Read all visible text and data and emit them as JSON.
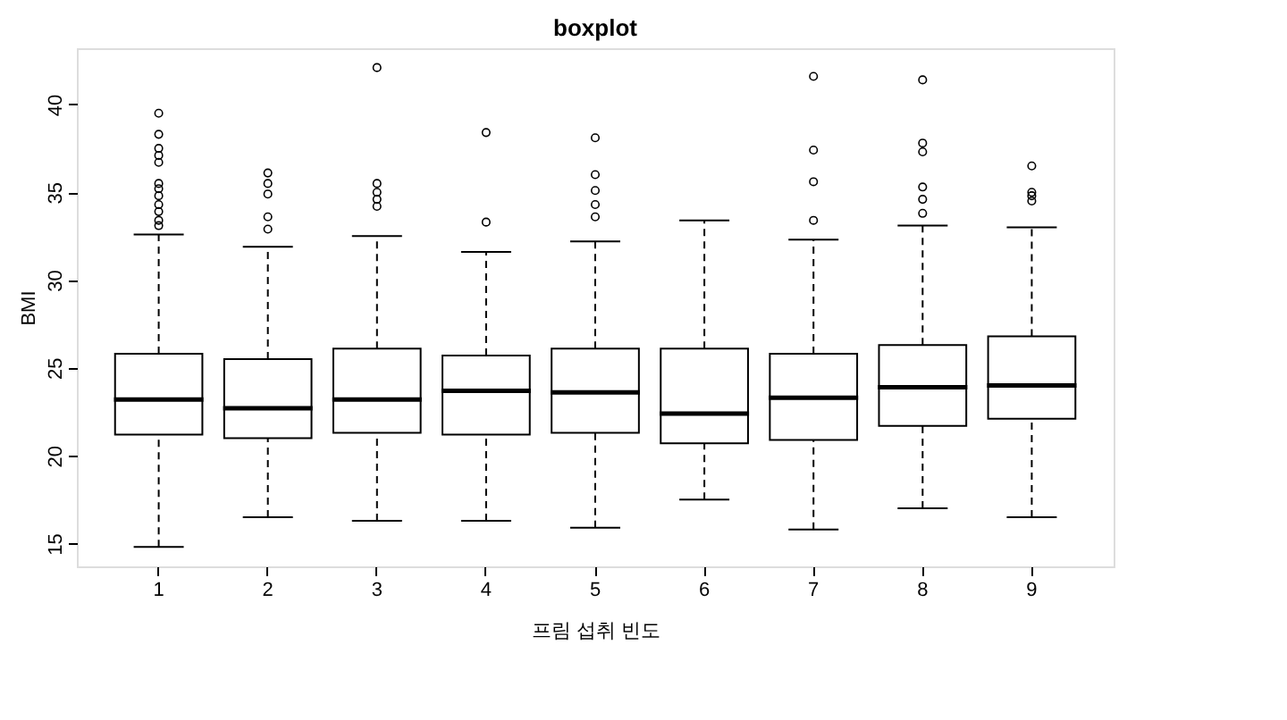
{
  "chart_data": {
    "type": "box",
    "title": "boxplot",
    "xlabel": "프림 섭취 빈도",
    "ylabel": "BMI",
    "categories": [
      "1",
      "2",
      "3",
      "4",
      "5",
      "6",
      "7",
      "8",
      "9"
    ],
    "boxes": [
      {
        "low": 14.8,
        "q1": 21.2,
        "median": 23.2,
        "q3": 25.8,
        "high": 32.6,
        "outliers": [
          39.5,
          38.3,
          37.5,
          37.1,
          36.7,
          35.5,
          35.2,
          34.8,
          34.3,
          33.9,
          33.4,
          33.1
        ]
      },
      {
        "low": 16.5,
        "q1": 21.0,
        "median": 22.7,
        "q3": 25.5,
        "high": 31.9,
        "outliers": [
          36.1,
          35.5,
          34.9,
          33.6,
          32.9
        ]
      },
      {
        "low": 16.3,
        "q1": 21.3,
        "median": 23.2,
        "q3": 26.1,
        "high": 32.5,
        "outliers": [
          42.1,
          35.5,
          35.0,
          34.6,
          34.2
        ]
      },
      {
        "low": 16.3,
        "q1": 21.2,
        "median": 23.7,
        "q3": 25.7,
        "high": 31.6,
        "outliers": [
          38.4,
          33.3
        ]
      },
      {
        "low": 15.9,
        "q1": 21.3,
        "median": 23.6,
        "q3": 26.1,
        "high": 32.2,
        "outliers": [
          38.1,
          36.0,
          35.1,
          34.3,
          33.6
        ]
      },
      {
        "low": 17.5,
        "q1": 20.7,
        "median": 22.4,
        "q3": 26.1,
        "high": 33.4
      },
      {
        "low": 15.8,
        "q1": 20.9,
        "median": 23.3,
        "q3": 25.8,
        "high": 32.3,
        "outliers": [
          41.6,
          37.4,
          35.6,
          33.4
        ]
      },
      {
        "low": 17.0,
        "q1": 21.7,
        "median": 23.9,
        "q3": 26.3,
        "high": 33.1,
        "outliers": [
          41.4,
          37.8,
          37.3,
          35.3,
          34.6,
          33.8
        ]
      },
      {
        "low": 16.5,
        "q1": 22.1,
        "median": 24.0,
        "q3": 26.8,
        "high": 33.0,
        "outliers": [
          36.5,
          35.0,
          34.8,
          34.5
        ]
      }
    ],
    "ylim": [
      13.7,
      43.2
    ],
    "yticks": [
      15,
      20,
      25,
      30,
      35,
      40
    ],
    "grid": false
  }
}
